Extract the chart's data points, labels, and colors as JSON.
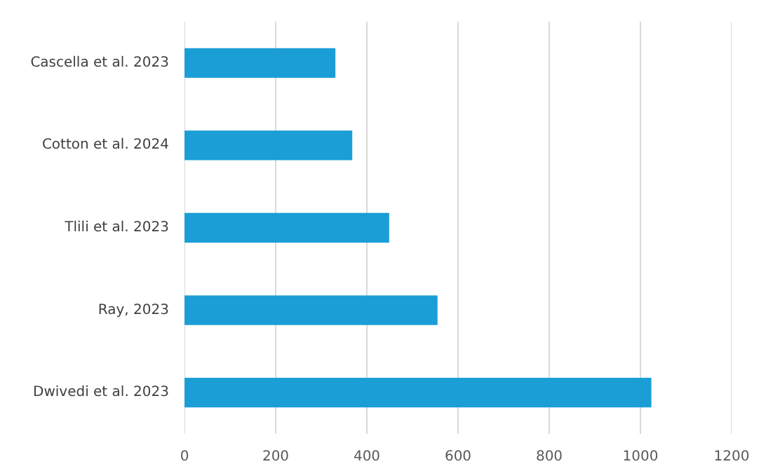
{
  "chart_data": {
    "type": "bar",
    "orientation": "horizontal",
    "categories": [
      "Cascella et al. 2023",
      "Cotton et al. 2024",
      "Tlili et al. 2023",
      "Ray, 2023",
      "Dwivedi et al. 2023"
    ],
    "values": [
      331,
      368,
      449,
      555,
      1024
    ],
    "color": "#1b9ed6",
    "xlim": [
      0,
      1200
    ],
    "xticks": [
      0,
      200,
      400,
      600,
      800,
      1000,
      1200
    ],
    "grid": "x"
  }
}
